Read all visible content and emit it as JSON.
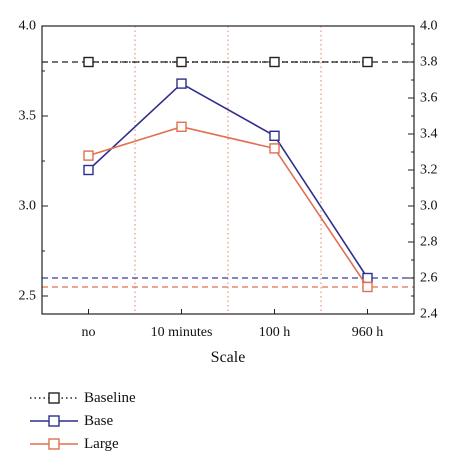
{
  "chart_data": {
    "type": "line",
    "title": "",
    "xlabel": "Scale",
    "ylabel": "",
    "categories": [
      "no",
      "10 minutes",
      "100 h",
      "960 h"
    ],
    "ylim": [
      2.4,
      4.0
    ],
    "y_left_ticks": [
      "2.5",
      "3.0",
      "3.5",
      "4.0"
    ],
    "y_right_ticks": [
      "2.4",
      "2.6",
      "2.8",
      "3.0",
      "3.2",
      "3.4",
      "3.6",
      "3.8",
      "4.0"
    ],
    "grid": "vertical dotted lines between categories",
    "legend_position": "bottom-left",
    "series": [
      {
        "name": "Baseline",
        "values": [
          3.8,
          3.8,
          3.8,
          3.8
        ],
        "color": "#222222",
        "line_style": "dotted",
        "marker": "square-open"
      },
      {
        "name": "Base",
        "values": [
          3.2,
          3.68,
          3.39,
          2.6
        ],
        "color": "#2e2f8c",
        "line_style": "solid",
        "marker": "square-open"
      },
      {
        "name": "Large",
        "values": [
          3.28,
          3.44,
          3.32,
          2.55
        ],
        "color": "#e07050",
        "line_style": "solid",
        "marker": "square-open"
      }
    ],
    "reference_lines": [
      {
        "series": "Baseline",
        "value": 3.8,
        "color": "#222222",
        "style": "dashed"
      },
      {
        "series": "Base",
        "value": 2.6,
        "color": "#3a3aa0",
        "style": "dashed"
      },
      {
        "series": "Large",
        "value": 2.55,
        "color": "#e07050",
        "style": "dashed"
      }
    ],
    "separator_color": "#e8806a"
  }
}
